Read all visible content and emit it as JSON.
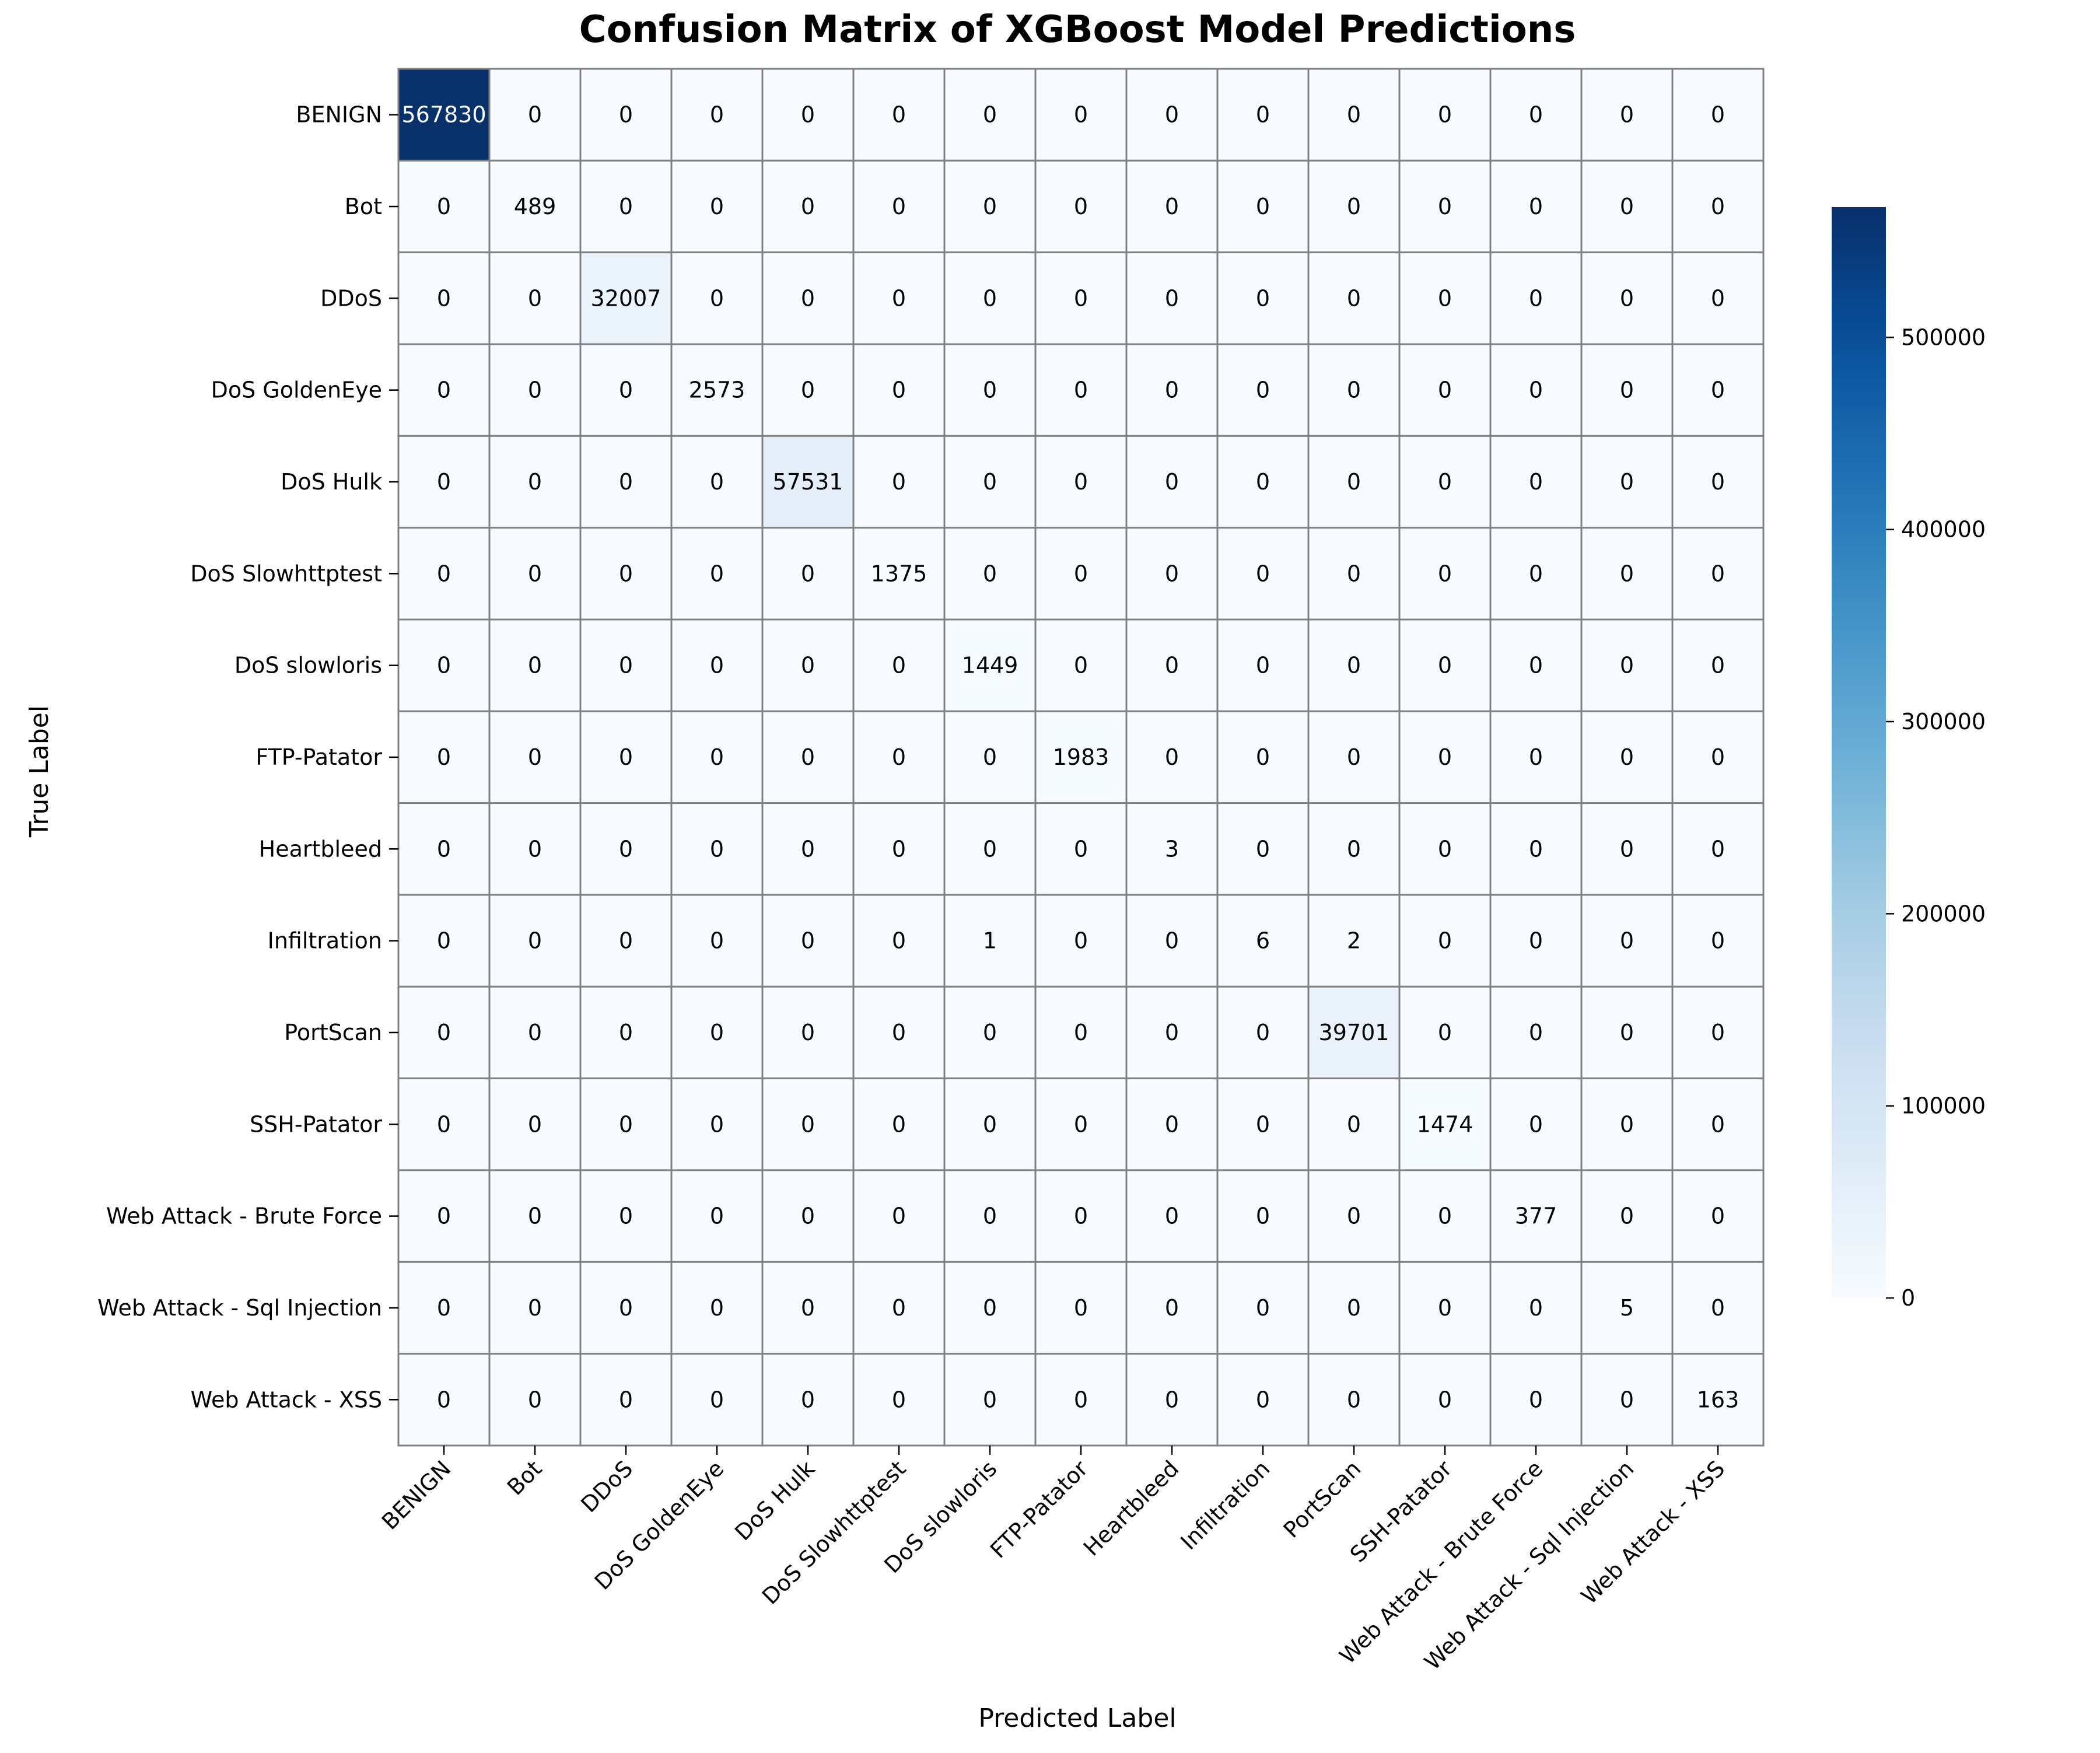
{
  "chart_data": {
    "type": "heatmap",
    "title": "Confusion Matrix of XGBoost Model Predictions",
    "xlabel": "Predicted Label",
    "ylabel": "True Label",
    "colormap": "Blues",
    "colors": {
      "low": "#f7fbff",
      "high": "#08306b",
      "cell_border": "#808080"
    },
    "categories": [
      "BENIGN",
      "Bot",
      "DDoS",
      "DoS GoldenEye",
      "DoS Hulk",
      "DoS Slowhttptest",
      "DoS slowloris",
      "FTP-Patator",
      "Heartbleed",
      "Infiltration",
      "PortScan",
      "SSH-Patator",
      "Web Attack - Brute Force",
      "Web Attack - Sql Injection",
      "Web Attack - XSS"
    ],
    "matrix": [
      [
        567830,
        0,
        0,
        0,
        0,
        0,
        0,
        0,
        0,
        0,
        0,
        0,
        0,
        0,
        0
      ],
      [
        0,
        489,
        0,
        0,
        0,
        0,
        0,
        0,
        0,
        0,
        0,
        0,
        0,
        0,
        0
      ],
      [
        0,
        0,
        32007,
        0,
        0,
        0,
        0,
        0,
        0,
        0,
        0,
        0,
        0,
        0,
        0
      ],
      [
        0,
        0,
        0,
        2573,
        0,
        0,
        0,
        0,
        0,
        0,
        0,
        0,
        0,
        0,
        0
      ],
      [
        0,
        0,
        0,
        0,
        57531,
        0,
        0,
        0,
        0,
        0,
        0,
        0,
        0,
        0,
        0
      ],
      [
        0,
        0,
        0,
        0,
        0,
        1375,
        0,
        0,
        0,
        0,
        0,
        0,
        0,
        0,
        0
      ],
      [
        0,
        0,
        0,
        0,
        0,
        0,
        1449,
        0,
        0,
        0,
        0,
        0,
        0,
        0,
        0
      ],
      [
        0,
        0,
        0,
        0,
        0,
        0,
        0,
        1983,
        0,
        0,
        0,
        0,
        0,
        0,
        0
      ],
      [
        0,
        0,
        0,
        0,
        0,
        0,
        0,
        0,
        3,
        0,
        0,
        0,
        0,
        0,
        0
      ],
      [
        0,
        0,
        0,
        0,
        0,
        0,
        1,
        0,
        0,
        6,
        2,
        0,
        0,
        0,
        0
      ],
      [
        0,
        0,
        0,
        0,
        0,
        0,
        0,
        0,
        0,
        0,
        39701,
        0,
        0,
        0,
        0
      ],
      [
        0,
        0,
        0,
        0,
        0,
        0,
        0,
        0,
        0,
        0,
        0,
        1474,
        0,
        0,
        0
      ],
      [
        0,
        0,
        0,
        0,
        0,
        0,
        0,
        0,
        0,
        0,
        0,
        0,
        377,
        0,
        0
      ],
      [
        0,
        0,
        0,
        0,
        0,
        0,
        0,
        0,
        0,
        0,
        0,
        0,
        0,
        5,
        0
      ],
      [
        0,
        0,
        0,
        0,
        0,
        0,
        0,
        0,
        0,
        0,
        0,
        0,
        0,
        0,
        163
      ]
    ],
    "colorbar": {
      "min": 0,
      "max": 567830,
      "ticks": [
        0,
        100000,
        200000,
        300000,
        400000,
        500000
      ]
    }
  }
}
